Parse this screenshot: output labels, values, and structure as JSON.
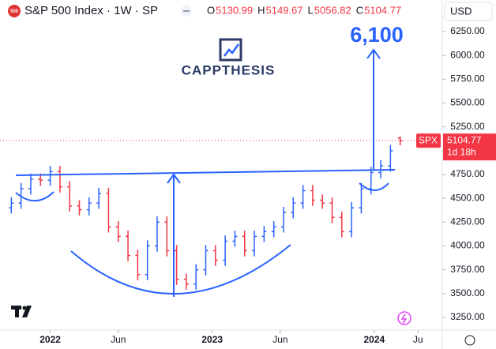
{
  "chart_data": {
    "type": "ohlc",
    "symbol_badge": "500",
    "title": "S&P 500 Index · 1W · SP",
    "currency": "USD",
    "ohlc_letters": [
      "O",
      "H",
      "L",
      "C"
    ],
    "ticker_tag": "SPX",
    "countdown": "1d 18h",
    "watermark": "CAPPTHESIS",
    "target": {
      "value": 6100,
      "label": "6,100"
    },
    "up_color": "#2962ff",
    "down_color": "#f23645",
    "grid": false,
    "x": [
      2021.76,
      2021.82,
      2021.88,
      2021.94,
      2022.0,
      2022.06,
      2022.12,
      2022.18,
      2022.24,
      2022.3,
      2022.36,
      2022.42,
      2022.48,
      2022.54,
      2022.6,
      2022.66,
      2022.72,
      2022.78,
      2022.84,
      2022.9,
      2022.96,
      2023.02,
      2023.08,
      2023.14,
      2023.2,
      2023.26,
      2023.32,
      2023.38,
      2023.44,
      2023.5,
      2023.56,
      2023.62,
      2023.68,
      2023.74,
      2023.8,
      2023.86,
      2023.92,
      2023.98,
      2024.04,
      2024.1,
      2024.16
    ],
    "open": [
      4400,
      4450,
      4600,
      4700,
      4690,
      4780,
      4620,
      4420,
      4380,
      4450,
      4550,
      4200,
      4100,
      3900,
      3700,
      4000,
      4250,
      3950,
      3650,
      3600,
      3750,
      3950,
      3850,
      4050,
      4100,
      3950,
      4100,
      4150,
      4200,
      4350,
      4450,
      4580,
      4480,
      4450,
      4300,
      4150,
      4400,
      4600,
      4770,
      4840,
      5130.99
    ],
    "high": [
      4510,
      4660,
      4760,
      4760,
      4840,
      4840,
      4680,
      4480,
      4510,
      4610,
      4610,
      4260,
      4160,
      3960,
      4060,
      4310,
      4310,
      4010,
      3710,
      3810,
      4010,
      4010,
      4110,
      4160,
      4160,
      4160,
      4210,
      4260,
      4410,
      4510,
      4640,
      4640,
      4540,
      4510,
      4360,
      4460,
      4660,
      4830,
      4900,
      5060,
      5149.67
    ],
    "low": [
      4340,
      4390,
      4540,
      4630,
      4630,
      4560,
      4360,
      4320,
      4320,
      4390,
      4140,
      4040,
      3840,
      3640,
      3640,
      3940,
      3890,
      3590,
      3540,
      3540,
      3690,
      3790,
      3790,
      3990,
      3890,
      3890,
      4040,
      4090,
      4140,
      4290,
      4390,
      4420,
      4390,
      4240,
      4090,
      4090,
      4340,
      4540,
      4710,
      4780,
      5056.82
    ],
    "close": [
      4450,
      4600,
      4700,
      4690,
      4780,
      4620,
      4420,
      4380,
      4450,
      4550,
      4200,
      4100,
      3900,
      3700,
      4000,
      4250,
      3950,
      3650,
      3600,
      3750,
      3950,
      3850,
      4050,
      4100,
      3950,
      4100,
      4150,
      4200,
      4350,
      4450,
      4580,
      4480,
      4450,
      4300,
      4150,
      4400,
      4600,
      4770,
      4840,
      5000,
      5104.77
    ],
    "xlim": [
      2021.69,
      2024.42
    ],
    "xticks": [
      2022,
      {
        "value": 2022.42,
        "label": "Jun"
      },
      2023,
      {
        "value": 2023.42,
        "label": "Jun"
      },
      2024,
      {
        "value": 2024.27,
        "label": "Ju"
      }
    ],
    "ylim": [
      3117,
      6581
    ],
    "yticks": [
      {
        "value": 3250,
        "label": "3250.00"
      },
      {
        "value": 3500,
        "label": "3500.00"
      },
      {
        "value": 3750,
        "label": "3750.00"
      },
      {
        "value": 4000,
        "label": "4000.00"
      },
      {
        "value": 4250,
        "label": "4250.00"
      },
      {
        "value": 4500,
        "label": "4500.00"
      },
      {
        "value": 4750,
        "label": "4750.00"
      },
      {
        "value": 5000,
        "label": "5000.00"
      },
      {
        "value": 5250,
        "label": "5250.00"
      },
      {
        "value": 5500,
        "label": "5500.00"
      },
      {
        "value": 5750,
        "label": "5750.00"
      },
      {
        "value": 6000,
        "label": "6000.00"
      },
      {
        "value": 6250,
        "label": "6250.00"
      }
    ]
  }
}
